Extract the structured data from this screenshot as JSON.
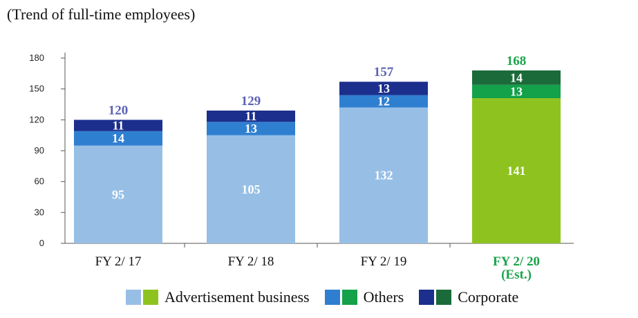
{
  "chart_data": {
    "type": "bar",
    "stacked": true,
    "subtitle": "(Trend of full-time employees)",
    "categories": [
      "FY 2/ 17",
      "FY 2/ 18",
      "FY 2/ 19",
      "FY 2/ 20 (Est.)"
    ],
    "category_lines": [
      [
        "FY 2/ 17"
      ],
      [
        "FY 2/ 18"
      ],
      [
        "FY 2/ 19"
      ],
      [
        "FY 2/ 20",
        "(Est.)"
      ]
    ],
    "series": [
      {
        "name": "Advertisement business",
        "values": [
          95,
          105,
          132,
          141
        ]
      },
      {
        "name": "Others",
        "values": [
          14,
          13,
          12,
          13
        ]
      },
      {
        "name": "Corporate",
        "values": [
          11,
          11,
          13,
          14
        ]
      }
    ],
    "totals": [
      120,
      129,
      157,
      168
    ],
    "ylim": [
      0,
      180
    ],
    "yticks": [
      0,
      30,
      60,
      90,
      120,
      150,
      180
    ],
    "grid": false,
    "legend_position": "bottom",
    "estimate_index": 3,
    "colors": {
      "actual": [
        "#97bfe6",
        "#2f7fd1",
        "#1c2f8c"
      ],
      "estimate": [
        "#8ec31f",
        "#13a14a",
        "#1b6b3a"
      ],
      "total_label_actual": "#5a62b4",
      "total_label_estimate": "#1aa34a",
      "estimate_category_label": "#1aa34a"
    }
  }
}
